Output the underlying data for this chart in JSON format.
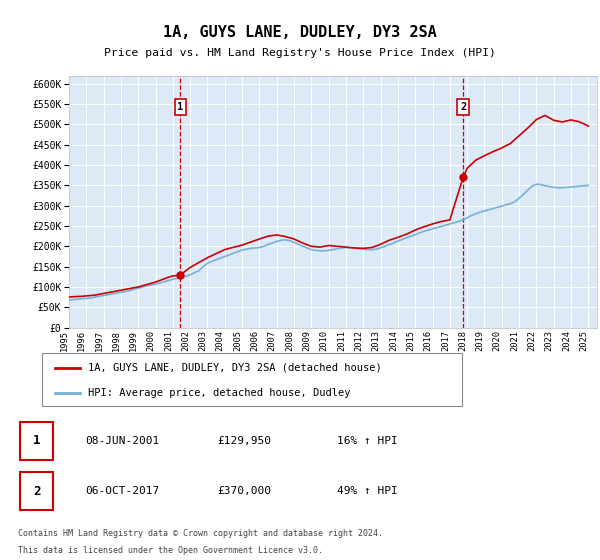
{
  "title": "1A, GUYS LANE, DUDLEY, DY3 2SA",
  "subtitle": "Price paid vs. HM Land Registry's House Price Index (HPI)",
  "legend_label_red": "1A, GUYS LANE, DUDLEY, DY3 2SA (detached house)",
  "legend_label_blue": "HPI: Average price, detached house, Dudley",
  "annotation1_date": "08-JUN-2001",
  "annotation1_price": "£129,950",
  "annotation1_hpi": "16% ↑ HPI",
  "annotation1_year": 2001.44,
  "annotation1_value": 129950,
  "annotation2_date": "06-OCT-2017",
  "annotation2_price": "£370,000",
  "annotation2_hpi": "49% ↑ HPI",
  "annotation2_year": 2017.77,
  "annotation2_value": 370000,
  "footer_line1": "Contains HM Land Registry data © Crown copyright and database right 2024.",
  "footer_line2": "This data is licensed under the Open Government Licence v3.0.",
  "ylim": [
    0,
    620000
  ],
  "xlim_min": 1995,
  "xlim_max": 2025.5,
  "bg_color": "#dce9f7",
  "red_color": "#cc0000",
  "blue_color": "#7ab0d4",
  "hpi_years": [
    1995.0,
    1995.25,
    1995.5,
    1995.75,
    1996.0,
    1996.25,
    1996.5,
    1996.75,
    1997.0,
    1997.25,
    1997.5,
    1997.75,
    1998.0,
    1998.25,
    1998.5,
    1998.75,
    1999.0,
    1999.25,
    1999.5,
    1999.75,
    2000.0,
    2000.25,
    2000.5,
    2000.75,
    2001.0,
    2001.25,
    2001.5,
    2001.75,
    2002.0,
    2002.25,
    2002.5,
    2002.75,
    2003.0,
    2003.25,
    2003.5,
    2003.75,
    2004.0,
    2004.25,
    2004.5,
    2004.75,
    2005.0,
    2005.25,
    2005.5,
    2005.75,
    2006.0,
    2006.25,
    2006.5,
    2006.75,
    2007.0,
    2007.25,
    2007.5,
    2007.75,
    2008.0,
    2008.25,
    2008.5,
    2008.75,
    2009.0,
    2009.25,
    2009.5,
    2009.75,
    2010.0,
    2010.25,
    2010.5,
    2010.75,
    2011.0,
    2011.25,
    2011.5,
    2011.75,
    2012.0,
    2012.25,
    2012.5,
    2012.75,
    2013.0,
    2013.25,
    2013.5,
    2013.75,
    2014.0,
    2014.25,
    2014.5,
    2014.75,
    2015.0,
    2015.25,
    2015.5,
    2015.75,
    2016.0,
    2016.25,
    2016.5,
    2016.75,
    2017.0,
    2017.25,
    2017.5,
    2017.75,
    2018.0,
    2018.25,
    2018.5,
    2018.75,
    2019.0,
    2019.25,
    2019.5,
    2019.75,
    2020.0,
    2020.25,
    2020.5,
    2020.75,
    2021.0,
    2021.25,
    2021.5,
    2021.75,
    2022.0,
    2022.25,
    2022.5,
    2022.75,
    2023.0,
    2023.25,
    2023.5,
    2023.75,
    2024.0,
    2024.25,
    2024.5,
    2024.75,
    2025.0
  ],
  "hpi_values": [
    68000,
    69000,
    70000,
    71000,
    72000,
    73000,
    75000,
    77000,
    79000,
    81000,
    83000,
    85000,
    87000,
    89000,
    91000,
    94000,
    97000,
    100000,
    103000,
    105000,
    107000,
    110000,
    113000,
    116000,
    119000,
    121000,
    123000,
    126000,
    130000,
    135000,
    140000,
    150000,
    158000,
    163000,
    167000,
    171000,
    175000,
    179000,
    183000,
    187000,
    191000,
    193000,
    195000,
    196000,
    197000,
    200000,
    205000,
    208000,
    212000,
    215000,
    216000,
    214000,
    210000,
    205000,
    200000,
    196000,
    192000,
    190000,
    189000,
    189000,
    190000,
    192000,
    194000,
    196000,
    197000,
    196000,
    195000,
    194000,
    193000,
    192000,
    192000,
    193000,
    196000,
    200000,
    204000,
    208000,
    213000,
    217000,
    221000,
    225000,
    229000,
    233000,
    237000,
    240000,
    243000,
    246000,
    249000,
    252000,
    255000,
    258000,
    261000,
    265000,
    270000,
    276000,
    280000,
    284000,
    287000,
    290000,
    293000,
    296000,
    299000,
    302000,
    305000,
    310000,
    318000,
    328000,
    338000,
    348000,
    353000,
    352000,
    349000,
    347000,
    345000,
    344000,
    344000,
    345000,
    346000,
    347000,
    348000,
    349000,
    350000
  ],
  "red_years": [
    1995.0,
    1995.25,
    1995.5,
    1995.75,
    1996.0,
    1996.25,
    1996.5,
    1996.75,
    1997.0,
    1997.25,
    1997.5,
    1997.75,
    1998.0,
    1998.25,
    1998.5,
    1998.75,
    1999.0,
    1999.25,
    1999.5,
    1999.75,
    2000.0,
    2000.25,
    2000.5,
    2000.75,
    2001.0,
    2001.25,
    2001.44,
    2002.0,
    2003.0,
    2004.0,
    2005.0,
    2006.0,
    2006.5,
    2007.0,
    2007.5,
    2008.0,
    2008.5,
    2009.0,
    2009.5,
    2010.0,
    2010.5,
    2011.0,
    2011.5,
    2012.0,
    2012.5,
    2013.0,
    2013.5,
    2014.0,
    2014.5,
    2015.0,
    2015.5,
    2016.0,
    2016.5,
    2017.0,
    2017.77,
    2018.0,
    2018.5,
    2019.0,
    2019.5,
    2020.0,
    2020.5,
    2021.0,
    2021.5,
    2022.0,
    2022.5,
    2023.0,
    2023.5,
    2024.0,
    2024.5,
    2025.0
  ],
  "red_values": [
    75000,
    76000,
    76500,
    77000,
    78000,
    79000,
    80000,
    82000,
    84000,
    86000,
    88000,
    90000,
    92000,
    94000,
    96000,
    98000,
    100000,
    103000,
    106000,
    109000,
    112000,
    116000,
    120000,
    124000,
    127000,
    128000,
    129950,
    148000,
    172000,
    192000,
    203000,
    218000,
    225000,
    228000,
    224000,
    218000,
    208000,
    200000,
    198000,
    202000,
    200000,
    198000,
    196000,
    195000,
    197000,
    205000,
    215000,
    222000,
    230000,
    240000,
    248000,
    255000,
    261000,
    265000,
    370000,
    392000,
    412000,
    423000,
    433000,
    442000,
    453000,
    472000,
    491000,
    512000,
    522000,
    510000,
    506000,
    511000,
    506000,
    496000
  ]
}
